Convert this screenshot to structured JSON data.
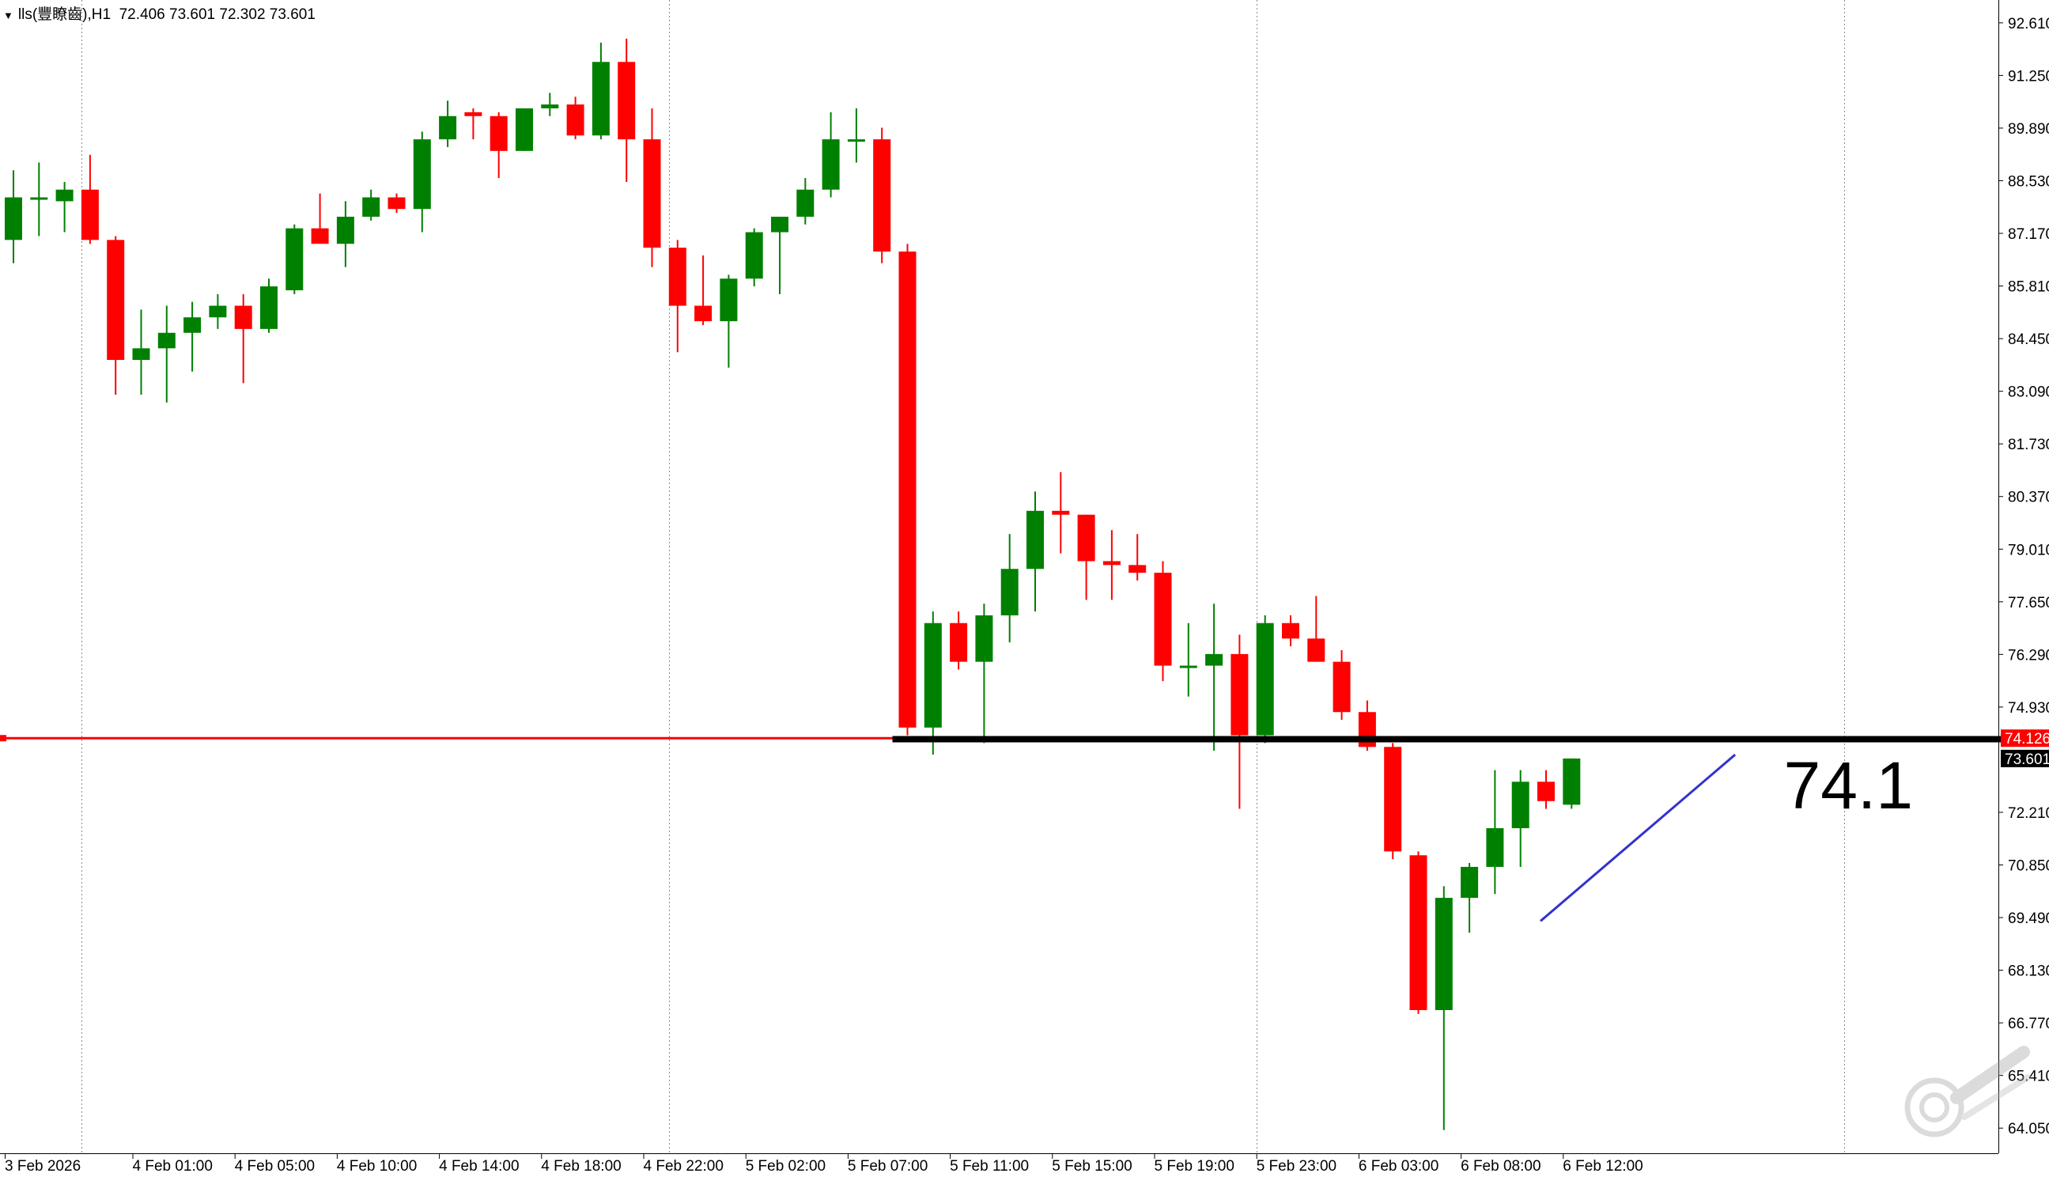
{
  "header": {
    "symbol": "lls(豐瞭齒),H1",
    "ohlc": "72.406 73.601 72.302 73.601"
  },
  "chart_data": {
    "type": "candlestick",
    "timeframe": "H1",
    "y_ticks": [
      "92.610",
      "91.250",
      "89.890",
      "88.530",
      "87.170",
      "85.810",
      "84.450",
      "83.090",
      "81.730",
      "80.370",
      "79.010",
      "77.650",
      "76.290",
      "74.930",
      "72.210",
      "70.850",
      "69.490",
      "68.130",
      "66.770",
      "65.410",
      "64.050"
    ],
    "y_range": [
      63.4,
      93.2
    ],
    "x_ticks": [
      {
        "label": "3 Feb 2026",
        "bar": 0
      },
      {
        "label": "4 Feb 01:00",
        "bar": 5
      },
      {
        "label": "4 Feb 05:00",
        "bar": 9
      },
      {
        "label": "4 Feb 10:00",
        "bar": 13
      },
      {
        "label": "4 Feb 14:00",
        "bar": 17
      },
      {
        "label": "4 Feb 18:00",
        "bar": 21
      },
      {
        "label": "4 Feb 22:00",
        "bar": 25
      },
      {
        "label": "5 Feb 02:00",
        "bar": 29
      },
      {
        "label": "5 Feb 07:00",
        "bar": 33
      },
      {
        "label": "5 Feb 11:00",
        "bar": 37
      },
      {
        "label": "5 Feb 15:00",
        "bar": 41
      },
      {
        "label": "5 Feb 19:00",
        "bar": 45
      },
      {
        "label": "5 Feb 23:00",
        "bar": 49
      },
      {
        "label": "6 Feb 03:00",
        "bar": 53
      },
      {
        "label": "6 Feb 08:00",
        "bar": 57
      },
      {
        "label": "6 Feb 12:00",
        "bar": 61
      }
    ],
    "vertical_grid_bars": [
      3,
      26,
      49,
      72
    ],
    "candles": [
      [
        87.0,
        88.8,
        86.4,
        88.1
      ],
      [
        88.1,
        89.0,
        87.1,
        88.1
      ],
      [
        88.0,
        88.5,
        87.2,
        88.3
      ],
      [
        88.3,
        89.2,
        86.9,
        87.0
      ],
      [
        87.0,
        87.1,
        83.0,
        83.9
      ],
      [
        83.9,
        85.2,
        83.0,
        84.2
      ],
      [
        84.2,
        85.3,
        82.8,
        84.6
      ],
      [
        84.6,
        85.4,
        83.6,
        85.0
      ],
      [
        85.0,
        85.6,
        84.7,
        85.3
      ],
      [
        85.3,
        85.6,
        83.3,
        84.7
      ],
      [
        84.7,
        86.0,
        84.6,
        85.8
      ],
      [
        85.7,
        87.4,
        85.6,
        87.3
      ],
      [
        87.3,
        88.2,
        86.9,
        86.9
      ],
      [
        86.9,
        88.0,
        86.3,
        87.6
      ],
      [
        87.6,
        88.3,
        87.5,
        88.1
      ],
      [
        88.1,
        88.2,
        87.7,
        87.8
      ],
      [
        87.8,
        89.8,
        87.2,
        89.6
      ],
      [
        89.6,
        90.6,
        89.4,
        90.2
      ],
      [
        90.3,
        90.4,
        89.6,
        90.2
      ],
      [
        90.2,
        90.3,
        88.6,
        89.3
      ],
      [
        89.3,
        90.4,
        89.3,
        90.4
      ],
      [
        90.4,
        90.8,
        90.2,
        90.5
      ],
      [
        90.5,
        90.7,
        89.6,
        89.7
      ],
      [
        89.7,
        92.1,
        89.6,
        91.6
      ],
      [
        91.6,
        92.2,
        88.5,
        89.6
      ],
      [
        89.6,
        90.4,
        86.3,
        86.8
      ],
      [
        86.8,
        87.0,
        84.1,
        85.3
      ],
      [
        85.3,
        86.6,
        84.8,
        84.9
      ],
      [
        84.9,
        86.1,
        83.7,
        86.0
      ],
      [
        86.0,
        87.3,
        85.8,
        87.2
      ],
      [
        87.2,
        87.5,
        85.6,
        87.6
      ],
      [
        87.6,
        88.6,
        87.4,
        88.3
      ],
      [
        88.3,
        90.3,
        88.1,
        89.6
      ],
      [
        89.6,
        90.4,
        89.0,
        89.6
      ],
      [
        89.6,
        89.9,
        86.4,
        86.7
      ],
      [
        86.7,
        86.9,
        74.2,
        74.4
      ],
      [
        74.4,
        77.4,
        73.7,
        77.1
      ],
      [
        77.1,
        77.4,
        75.9,
        76.1
      ],
      [
        76.1,
        77.6,
        74.0,
        77.3
      ],
      [
        77.3,
        79.4,
        76.6,
        78.5
      ],
      [
        78.5,
        80.5,
        77.4,
        80.0
      ],
      [
        80.0,
        81.0,
        78.9,
        79.9
      ],
      [
        79.9,
        79.9,
        77.7,
        78.7
      ],
      [
        78.7,
        79.5,
        77.7,
        78.6
      ],
      [
        78.6,
        79.4,
        78.2,
        78.4
      ],
      [
        78.4,
        78.7,
        75.6,
        76.0
      ],
      [
        76.0,
        77.1,
        75.2,
        76.0
      ],
      [
        76.0,
        77.6,
        73.8,
        76.3
      ],
      [
        76.3,
        76.8,
        72.3,
        74.2
      ],
      [
        74.2,
        77.3,
        74.0,
        77.1
      ],
      [
        77.1,
        77.3,
        76.5,
        76.7
      ],
      [
        76.7,
        77.8,
        76.1,
        76.1
      ],
      [
        76.1,
        76.4,
        74.6,
        74.8
      ],
      [
        74.8,
        75.1,
        73.8,
        73.9
      ],
      [
        73.9,
        74.0,
        71.0,
        71.2
      ],
      [
        71.1,
        71.2,
        67.0,
        67.1
      ],
      [
        67.1,
        70.3,
        64.0,
        70.0
      ],
      [
        70.0,
        70.9,
        69.1,
        70.8
      ],
      [
        70.8,
        73.3,
        70.1,
        71.8
      ],
      [
        71.8,
        73.3,
        70.8,
        73.0
      ],
      [
        73.0,
        73.3,
        72.3,
        72.5
      ],
      [
        72.406,
        73.601,
        72.302,
        73.601
      ]
    ],
    "horizontal_line": {
      "price": 74.126,
      "color": "#ff0000",
      "label": "74.126"
    },
    "current_price": {
      "price": 73.601,
      "label": "73.601"
    },
    "support_level": {
      "price": 74.1,
      "from_bar": 35,
      "to_bar": 78,
      "color": "#000000",
      "label": "74.1"
    },
    "trendline": {
      "from": [
        60,
        69.4
      ],
      "to": [
        67,
        73.7
      ],
      "color": "#3333cc"
    },
    "colors": {
      "bull": "#008000",
      "bear": "#ff0000",
      "grid": "#8a8a8a",
      "axis": "#000000"
    }
  }
}
